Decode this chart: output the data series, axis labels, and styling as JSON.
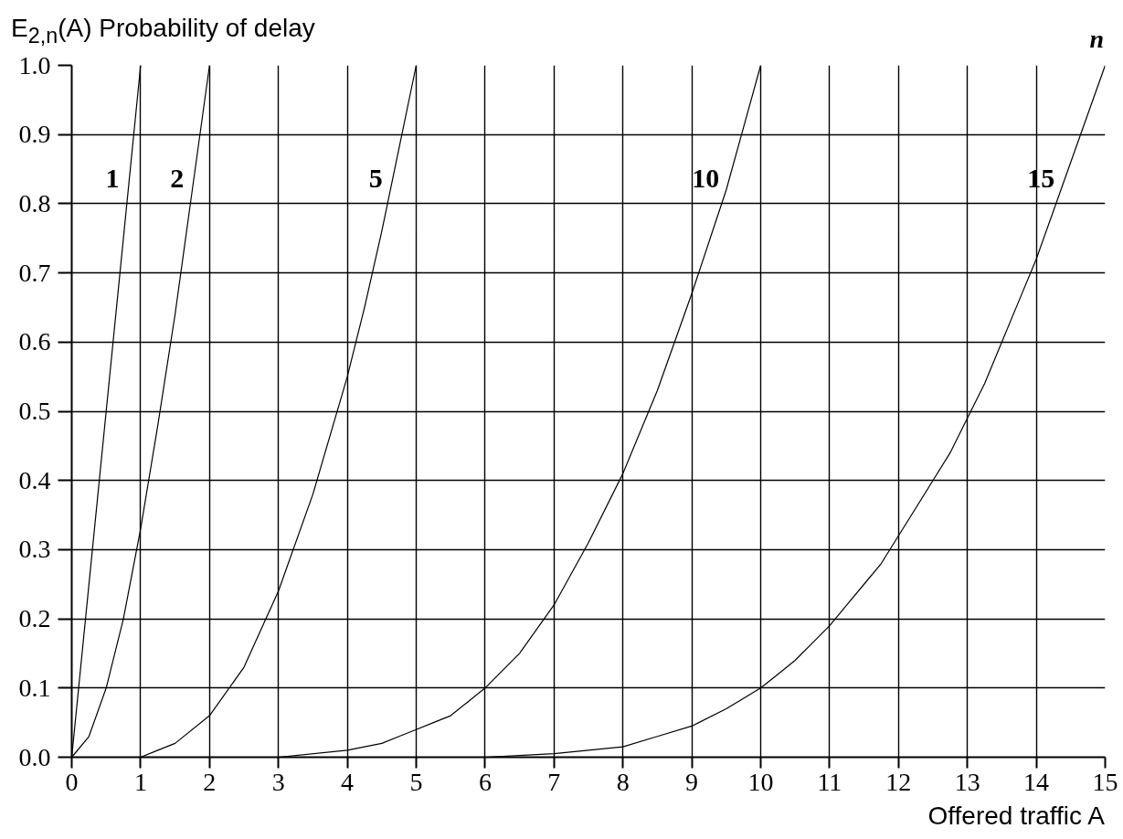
{
  "chart_data": {
    "type": "line",
    "xlabel": "Offered traffic A",
    "ylabel": "E$_{2,n}$(A) Probability of delay",
    "legend_title": "n",
    "xlim": [
      0,
      15
    ],
    "ylim": [
      0,
      1
    ],
    "xticks": [
      0,
      1,
      2,
      3,
      4,
      5,
      6,
      7,
      8,
      9,
      10,
      11,
      12,
      13,
      14,
      15
    ],
    "yticks": [
      {
        "value": 0,
        "label": "0.0"
      },
      0.1,
      0.2,
      0.3,
      0.4,
      0.5,
      0.6,
      0.7,
      0.8,
      0.9,
      {
        "value": 1,
        "label": "1.0"
      }
    ],
    "grid": true,
    "line_style": "solid",
    "series": [
      {
        "name": "1",
        "color": "#000000",
        "x": [
          0,
          0.5,
          1
        ],
        "values": [
          0,
          0.5,
          1.0
        ]
      },
      {
        "name": "2",
        "color": "#000000",
        "x": [
          0,
          0.25,
          0.5,
          0.75,
          1,
          1.25,
          1.5,
          1.75,
          2
        ],
        "values": [
          0,
          0.03,
          0.1,
          0.2,
          0.33,
          0.48,
          0.64,
          0.82,
          1.0
        ]
      },
      {
        "name": "5",
        "color": "#000000",
        "x": [
          0,
          0.5,
          1,
          1.25,
          1.5,
          2,
          2.5,
          3,
          3.5,
          4,
          4.25,
          4.5,
          4.75,
          5
        ],
        "values": [
          0,
          0,
          0,
          0.01,
          0.02,
          0.06,
          0.13,
          0.24,
          0.38,
          0.55,
          0.65,
          0.76,
          0.88,
          1.0
        ]
      },
      {
        "name": "10",
        "color": "#000000",
        "x": [
          0,
          2,
          3,
          4,
          4.5,
          4.75,
          5,
          5.25,
          5.5,
          5.75,
          6,
          6.25,
          6.5,
          7,
          7.5,
          8,
          8.5,
          9,
          9.5,
          9.75,
          10
        ],
        "values": [
          0,
          0,
          0,
          0.01,
          0.02,
          0.03,
          0.04,
          0.05,
          0.06,
          0.08,
          0.1,
          0.125,
          0.15,
          0.22,
          0.31,
          0.41,
          0.53,
          0.67,
          0.82,
          0.91,
          1.0
        ]
      },
      {
        "name": "15",
        "color": "#000000",
        "x": [
          0,
          5,
          6,
          7,
          7.5,
          8,
          8.5,
          9,
          9.5,
          10,
          10.25,
          10.5,
          10.75,
          11,
          11.25,
          11.5,
          11.75,
          12,
          12.5,
          12.75,
          13,
          13.25,
          13.5,
          13.75,
          14,
          14.25,
          14.5,
          14.75,
          15
        ],
        "values": [
          0,
          0,
          0,
          0.005,
          0.01,
          0.015,
          0.03,
          0.045,
          0.07,
          0.1,
          0.12,
          0.14,
          0.165,
          0.19,
          0.22,
          0.25,
          0.28,
          0.32,
          0.4,
          0.44,
          0.49,
          0.54,
          0.6,
          0.66,
          0.72,
          0.79,
          0.86,
          0.93,
          1.0
        ]
      }
    ]
  }
}
